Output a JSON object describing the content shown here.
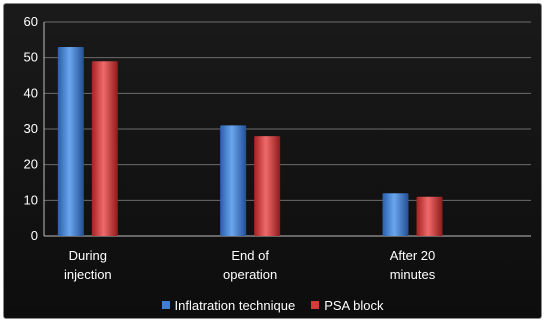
{
  "chart_data": {
    "type": "bar",
    "title": "",
    "xlabel": "",
    "ylabel": "",
    "ylim": [
      0,
      60
    ],
    "yticks": [
      0,
      10,
      20,
      30,
      40,
      50,
      60
    ],
    "grid": true,
    "legend_position": "bottom",
    "categories": [
      [
        "During",
        "injection"
      ],
      [
        "End of",
        "operation"
      ],
      [
        "After 20",
        "minutes"
      ]
    ],
    "series": [
      {
        "name": "Inflatration  technique",
        "values": [
          53,
          31,
          12
        ],
        "color": "#3d7fd6"
      },
      {
        "name": "PSA block",
        "values": [
          49,
          28,
          11
        ],
        "color": "#d63a3a"
      }
    ]
  }
}
